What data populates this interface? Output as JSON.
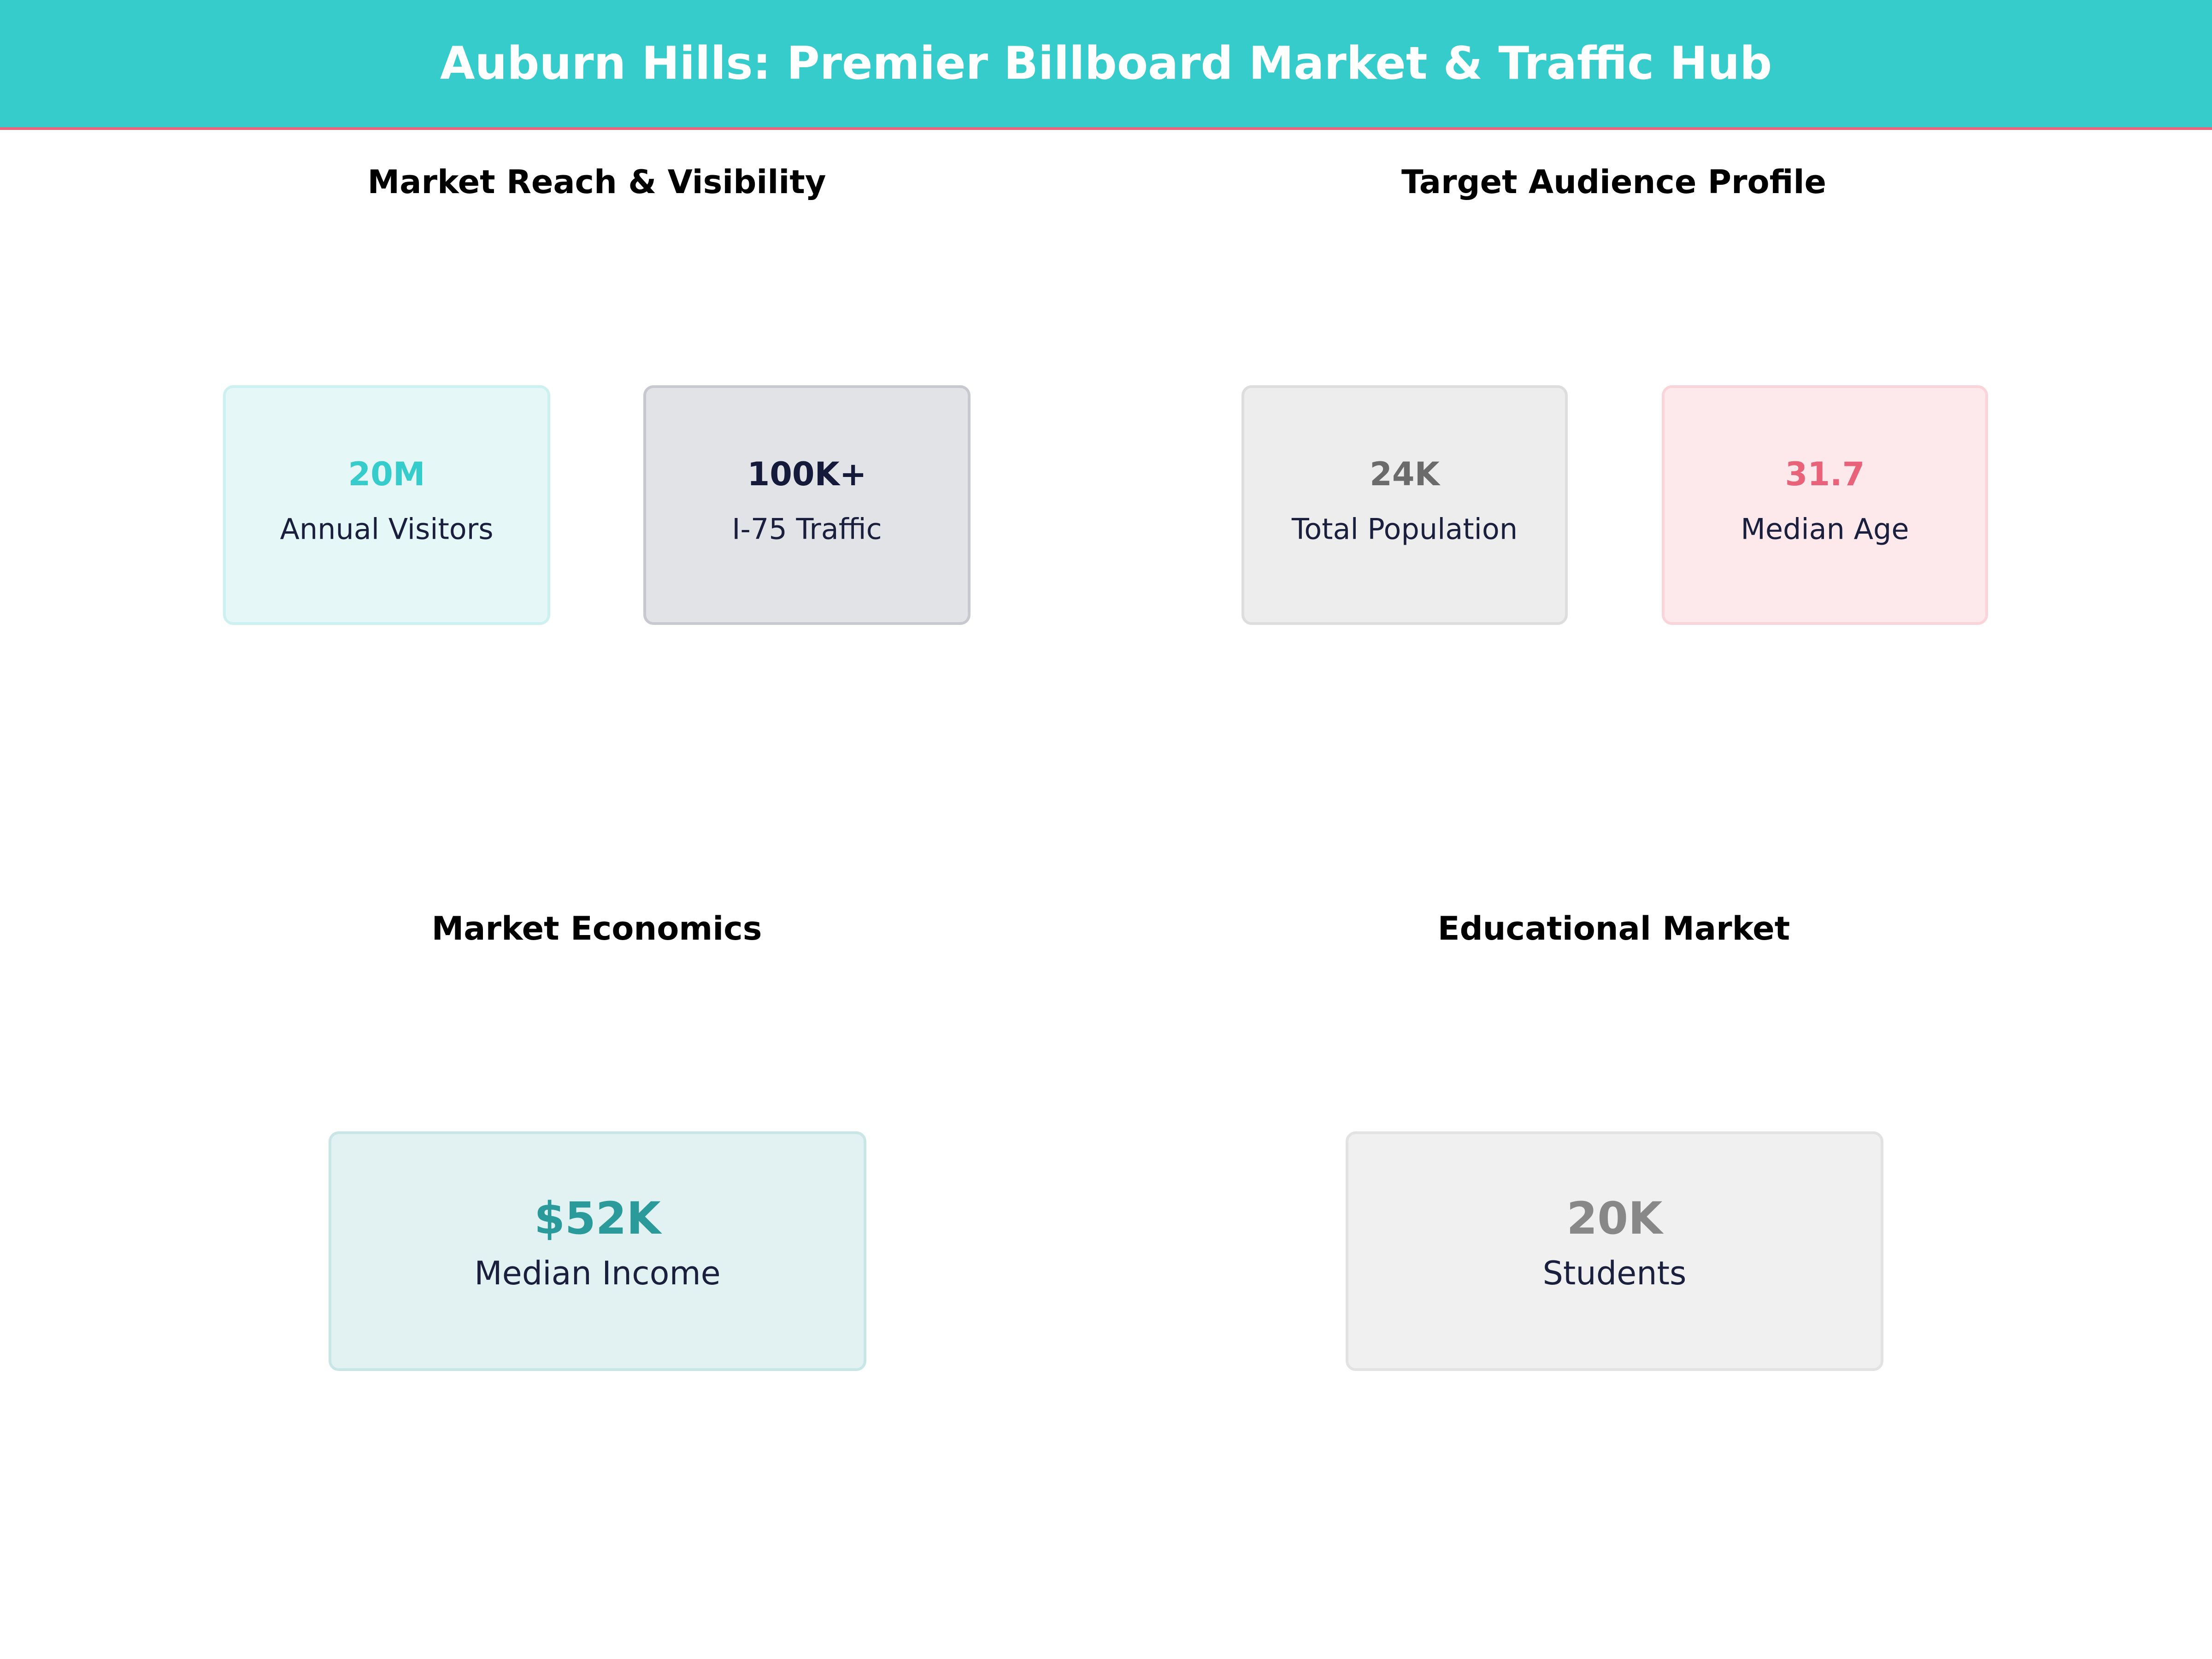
{
  "header": {
    "title": "Auburn Hills: Premier Billboard Market & Traffic Hub"
  },
  "sections": [
    {
      "title": "Market Reach & Visibility",
      "cards": [
        {
          "value": "20M",
          "label": "Annual Visitors"
        },
        {
          "value": "100K+",
          "label": "I-75 Traffic"
        }
      ]
    },
    {
      "title": "Target Audience Profile",
      "cards": [
        {
          "value": "24K",
          "label": "Total Population"
        },
        {
          "value": "31.7",
          "label": "Median Age"
        }
      ]
    },
    {
      "title": "Market Economics",
      "cards": [
        {
          "value": "$52K",
          "label": "Median Income"
        }
      ]
    },
    {
      "title": "Educational Market",
      "cards": [
        {
          "value": "20K",
          "label": "Students"
        }
      ]
    }
  ]
}
